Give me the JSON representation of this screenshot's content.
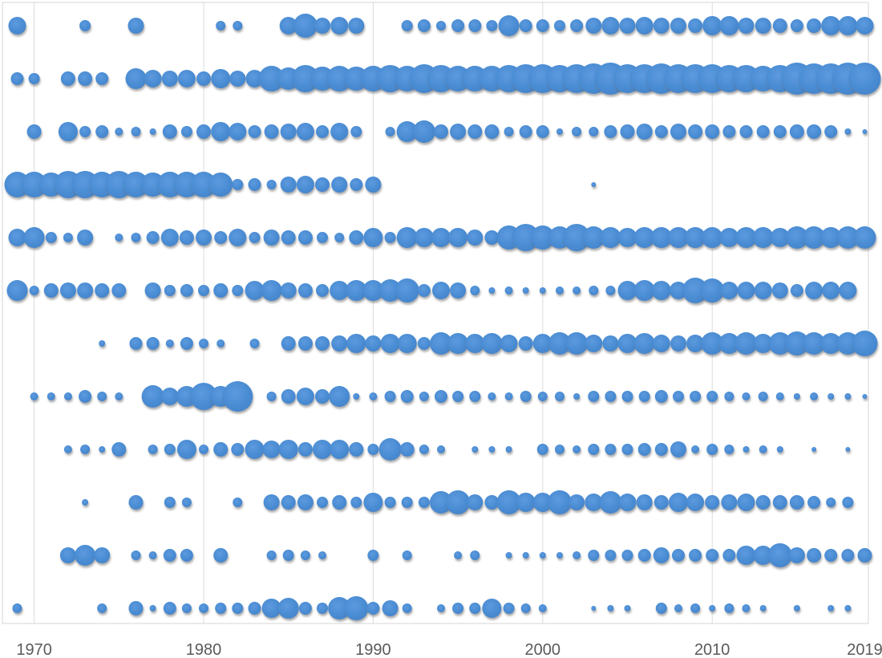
{
  "chart_data": {
    "type": "scatter",
    "subtype": "bubble-timeline",
    "title": "",
    "xlabel": "",
    "ylabel": "",
    "legend": "none",
    "grid": "vertical-decade-gridlines",
    "x_start_year": 1969,
    "x_end_year": 2019,
    "x_ticks": [
      1970,
      1980,
      1990,
      2000,
      2010,
      2019
    ],
    "x_tick_labels": [
      "1970",
      "1980",
      "1990",
      "2000",
      "2010",
      "2019"
    ],
    "colors": {
      "bubble": "#4a8cd3",
      "bubble_highlight": "#5d9ade",
      "bubble_edge": "#4383c8",
      "shadow": "#6b6b6b",
      "gridline": "#dcdcdc",
      "plot_border": "#d6d6d6",
      "axis_text": "#5a5a5a",
      "background": "#ffffff"
    },
    "rows": [
      {
        "name": "row-01",
        "radius_px": [
          11,
          0,
          0,
          0,
          7,
          0,
          0,
          10,
          0,
          0,
          0,
          0,
          6,
          6,
          0,
          0,
          11,
          15,
          10,
          11,
          10,
          0,
          0,
          7,
          8,
          6,
          8,
          8,
          7,
          13,
          8,
          8,
          7,
          8,
          10,
          11,
          10,
          11,
          10,
          10,
          9,
          12,
          12,
          10,
          10,
          9,
          8,
          9,
          12,
          12,
          11
        ]
      },
      {
        "name": "row-02",
        "radius_px": [
          8,
          7,
          0,
          9,
          9,
          8,
          0,
          13,
          11,
          10,
          11,
          9,
          12,
          10,
          11,
          16,
          14,
          17,
          15,
          16,
          15,
          16,
          17,
          16,
          18,
          17,
          16,
          16,
          16,
          17,
          18,
          18,
          17,
          18,
          19,
          20,
          18,
          18,
          19,
          18,
          18,
          18,
          17,
          17,
          16,
          17,
          20,
          19,
          19,
          20,
          20
        ]
      },
      {
        "name": "row-03",
        "radius_px": [
          0,
          9,
          0,
          12,
          7,
          8,
          5,
          6,
          4,
          9,
          7,
          9,
          12,
          11,
          8,
          9,
          10,
          11,
          8,
          11,
          7,
          0,
          6,
          13,
          14,
          9,
          10,
          9,
          9,
          6,
          8,
          8,
          4,
          6,
          6,
          8,
          9,
          10,
          8,
          10,
          9,
          9,
          8,
          8,
          8,
          8,
          9,
          9,
          8,
          4,
          3
        ]
      },
      {
        "name": "row-04",
        "radius_px": [
          16,
          16,
          15,
          17,
          17,
          16,
          17,
          16,
          15,
          16,
          16,
          16,
          15,
          7,
          8,
          6,
          10,
          11,
          9,
          10,
          8,
          10,
          0,
          0,
          0,
          0,
          0,
          0,
          0,
          0,
          0,
          0,
          0,
          0,
          3,
          0,
          0,
          0,
          0,
          0,
          0,
          0,
          0,
          0,
          0,
          0,
          0,
          0,
          0,
          0,
          0
        ]
      },
      {
        "name": "row-05",
        "radius_px": [
          11,
          13,
          7,
          6,
          10,
          0,
          5,
          6,
          8,
          11,
          9,
          10,
          8,
          11,
          7,
          10,
          9,
          9,
          7,
          6,
          9,
          12,
          7,
          13,
          12,
          12,
          12,
          10,
          9,
          15,
          17,
          15,
          14,
          17,
          14,
          13,
          12,
          13,
          13,
          13,
          13,
          13,
          12,
          13,
          13,
          12,
          14,
          14,
          13,
          14,
          14
        ]
      },
      {
        "name": "row-06",
        "radius_px": [
          13,
          6,
          9,
          10,
          10,
          9,
          9,
          0,
          10,
          7,
          8,
          7,
          9,
          7,
          12,
          13,
          10,
          9,
          8,
          12,
          13,
          13,
          14,
          15,
          8,
          11,
          10,
          6,
          4,
          5,
          4,
          4,
          5,
          5,
          6,
          6,
          12,
          13,
          12,
          11,
          16,
          15,
          11,
          11,
          11,
          10,
          8,
          11,
          11,
          11,
          0
        ]
      },
      {
        "name": "row-07",
        "radius_px": [
          0,
          0,
          0,
          0,
          0,
          4,
          0,
          8,
          8,
          5,
          8,
          6,
          5,
          0,
          6,
          0,
          9,
          9,
          9,
          10,
          12,
          10,
          12,
          12,
          8,
          14,
          13,
          12,
          13,
          11,
          9,
          12,
          14,
          14,
          11,
          10,
          12,
          13,
          11,
          10,
          11,
          14,
          13,
          14,
          12,
          14,
          15,
          14,
          13,
          14,
          16
        ]
      },
      {
        "name": "row-08",
        "radius_px": [
          0,
          5,
          5,
          5,
          8,
          6,
          5,
          0,
          14,
          11,
          13,
          17,
          13,
          19,
          0,
          6,
          9,
          11,
          9,
          13,
          4,
          5,
          7,
          8,
          6,
          8,
          7,
          7,
          5,
          5,
          7,
          6,
          6,
          4,
          7,
          7,
          7,
          7,
          8,
          7,
          7,
          7,
          6,
          5,
          6,
          5,
          4,
          5,
          4,
          4,
          3
        ]
      },
      {
        "name": "row-09",
        "radius_px": [
          0,
          0,
          0,
          5,
          6,
          4,
          9,
          0,
          6,
          7,
          12,
          6,
          9,
          8,
          12,
          11,
          12,
          9,
          12,
          12,
          9,
          7,
          14,
          9,
          6,
          5,
          0,
          4,
          4,
          4,
          0,
          7,
          6,
          5,
          7,
          7,
          7,
          8,
          8,
          10,
          5,
          7,
          6,
          4,
          5,
          4,
          0,
          3,
          0,
          3,
          0
        ]
      },
      {
        "name": "row-10",
        "radius_px": [
          0,
          0,
          0,
          0,
          4,
          0,
          0,
          9,
          0,
          7,
          6,
          0,
          0,
          6,
          0,
          10,
          9,
          10,
          7,
          9,
          7,
          12,
          7,
          7,
          7,
          14,
          15,
          10,
          9,
          15,
          12,
          12,
          15,
          10,
          11,
          14,
          11,
          10,
          9,
          12,
          11,
          9,
          10,
          11,
          9,
          9,
          9,
          8,
          6,
          7,
          0
        ]
      },
      {
        "name": "row-11",
        "radius_px": [
          0,
          0,
          0,
          10,
          13,
          10,
          0,
          6,
          5,
          8,
          8,
          0,
          9,
          0,
          0,
          6,
          7,
          6,
          5,
          0,
          0,
          7,
          0,
          6,
          0,
          0,
          5,
          6,
          0,
          4,
          4,
          4,
          4,
          5,
          7,
          7,
          7,
          8,
          10,
          8,
          8,
          8,
          8,
          12,
          12,
          15,
          10,
          9,
          8,
          8,
          9
        ]
      },
      {
        "name": "row-12",
        "radius_px": [
          6,
          0,
          0,
          0,
          0,
          6,
          0,
          9,
          4,
          8,
          6,
          6,
          7,
          7,
          8,
          12,
          13,
          8,
          7,
          14,
          15,
          8,
          10,
          6,
          0,
          5,
          7,
          7,
          12,
          7,
          6,
          5,
          0,
          0,
          3,
          4,
          4,
          0,
          7,
          5,
          6,
          4,
          6,
          5,
          4,
          0,
          4,
          0,
          4,
          4,
          0
        ]
      }
    ]
  }
}
